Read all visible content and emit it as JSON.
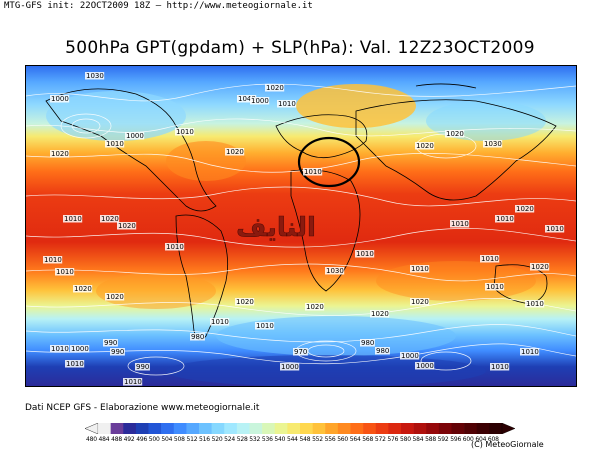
{
  "header": {
    "run_info": "MTG-GFS init: 22OCT2009 18Z — http://www.meteogiornale.it"
  },
  "title": "500hPa GPT(gpdam) + SLP(hPa): Val. 12Z23OCT2009",
  "watermark": "النايف",
  "map_labels": [
    {
      "text": "1030"
    },
    {
      "text": "1000"
    },
    {
      "text": "1040"
    },
    {
      "text": "1020"
    },
    {
      "text": "1000"
    },
    {
      "text": "1010"
    },
    {
      "text": "1020"
    },
    {
      "text": "1010"
    },
    {
      "text": "1000"
    },
    {
      "text": "1010"
    },
    {
      "text": "1020"
    },
    {
      "text": "1010"
    },
    {
      "text": "1020"
    },
    {
      "text": "1020"
    },
    {
      "text": "1030"
    },
    {
      "text": "1010"
    },
    {
      "text": "1020"
    },
    {
      "text": "1020"
    },
    {
      "text": "1010"
    },
    {
      "text": "1010"
    },
    {
      "text": "1020"
    },
    {
      "text": "1030"
    },
    {
      "text": "1010"
    },
    {
      "text": "1010"
    },
    {
      "text": "1020"
    },
    {
      "text": "1010"
    },
    {
      "text": "1010"
    },
    {
      "text": "1010"
    },
    {
      "text": "1010"
    },
    {
      "text": "1020"
    },
    {
      "text": "1010"
    },
    {
      "text": "1020"
    },
    {
      "text": "1020"
    },
    {
      "text": "1010"
    },
    {
      "text": "1020"
    },
    {
      "text": "1010"
    },
    {
      "text": "1020"
    },
    {
      "text": "1010"
    },
    {
      "text": "1020"
    },
    {
      "text": "1010"
    },
    {
      "text": "990"
    },
    {
      "text": "1000"
    },
    {
      "text": "990"
    },
    {
      "text": "980"
    },
    {
      "text": "970"
    },
    {
      "text": "980"
    },
    {
      "text": "990"
    },
    {
      "text": "1000"
    },
    {
      "text": "980"
    },
    {
      "text": "1000"
    },
    {
      "text": "1010"
    },
    {
      "text": "1010"
    },
    {
      "text": "1010"
    },
    {
      "text": "1000"
    },
    {
      "text": "1010"
    },
    {
      "text": "1010"
    }
  ],
  "footer": {
    "source": "Dati NCEP GFS - Elaborazione www.meteogiornale.it"
  },
  "colorbar": {
    "ticks": "480 484 488 492 496 500 504 508 512 516 520 524 528 532 536 540 544 548 552 556 560 564 568 572 576 580 584 588 592 596 600 604 608",
    "colors": [
      "#f0f0f0",
      "#6a3d9a",
      "#2b2b9a",
      "#1e3fb4",
      "#2255d6",
      "#2f6ff0",
      "#3f8cff",
      "#56a8ff",
      "#6dc2ff",
      "#86d8ff",
      "#a0e8ff",
      "#b8f2f5",
      "#c9f5dc",
      "#d9f7b8",
      "#ebf592",
      "#f7ea70",
      "#ffd84f",
      "#ffc23a",
      "#ffa52a",
      "#ff8a20",
      "#ff6e18",
      "#f85414",
      "#ec3c12",
      "#dc2810",
      "#c8180e",
      "#b0100c",
      "#96080a",
      "#7c0408",
      "#640206",
      "#500104",
      "#3c0003",
      "#2c0002"
    ],
    "unit_note": ""
  },
  "credit": "(C) MeteoGiornale"
}
